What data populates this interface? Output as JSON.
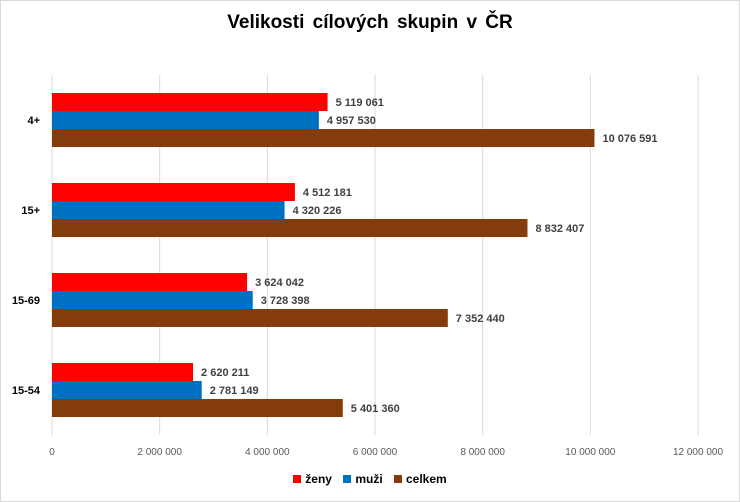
{
  "chart_data": {
    "type": "bar",
    "orientation": "horizontal",
    "title": "Velikosti  cílových skupin  v ČR",
    "categories": [
      "4+",
      "15+",
      "15-69",
      "15-54"
    ],
    "series": [
      {
        "name": "ženy",
        "color": "#ff0000",
        "values": [
          5119061,
          4512181,
          3624042,
          2620211
        ],
        "labels": [
          "5 119 061",
          "4 512 181",
          "3 624 042",
          "2 620 211"
        ]
      },
      {
        "name": "muži",
        "color": "#0070c0",
        "values": [
          4957530,
          4320226,
          3728398,
          2781149
        ],
        "labels": [
          "4 957 530",
          "4 320 226",
          "3 728 398",
          "2 781 149"
        ]
      },
      {
        "name": "celkem",
        "color": "#843c0c",
        "values": [
          10076591,
          8832407,
          7352440,
          5401360
        ],
        "labels": [
          "10 076 591",
          "8 832 407",
          "7 352 440",
          "5 401 360"
        ]
      }
    ],
    "xlim": [
      0,
      12000000
    ],
    "xticks": [
      0,
      2000000,
      4000000,
      6000000,
      8000000,
      10000000,
      12000000
    ],
    "xtick_labels": [
      "0",
      "2 000 000",
      "4 000 000",
      "6 000 000",
      "8 000 000",
      "10 000 000",
      "12 000 000"
    ],
    "grid": true,
    "legend_position": "bottom"
  }
}
